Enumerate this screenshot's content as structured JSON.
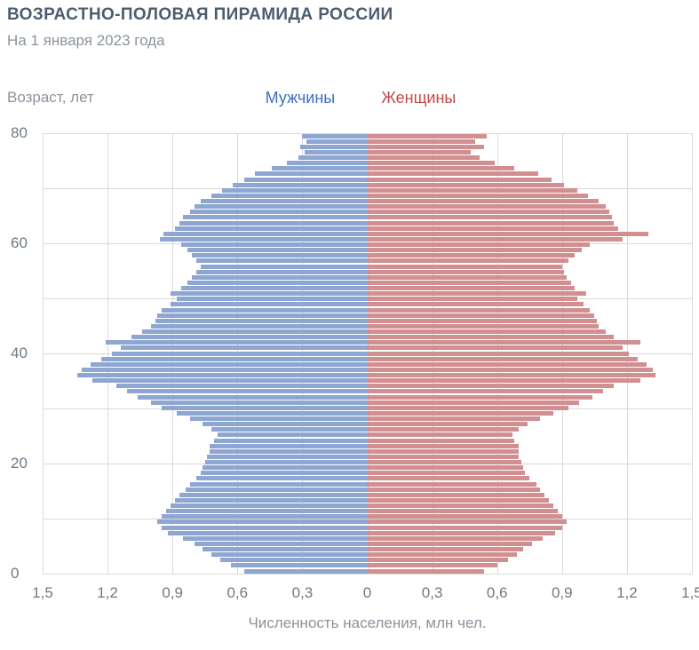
{
  "header": {
    "title": "ВОЗРАСТНО-ПОЛОВАЯ ПИРАМИДА РОССИИ",
    "subtitle": "На 1 января 2023 года"
  },
  "chart_data": {
    "type": "bar",
    "variant": "population-pyramid",
    "title": "Возрастно-половая пирамида России",
    "subtitle": "На 1 января 2023 года",
    "y_axis_title": "Возраст, лет",
    "xlabel": "Численность населения, млн чел.",
    "legend": {
      "male": "Мужчины",
      "female": "Женщины"
    },
    "grid": true,
    "x_max": 1.5,
    "x_ticks": [
      "1,5",
      "1,2",
      "0,9",
      "0,6",
      "0,3",
      "0",
      "0,3",
      "0,6",
      "0,9",
      "1,2",
      "1,5"
    ],
    "x_tick_values": [
      -1.5,
      -1.2,
      -0.9,
      -0.6,
      -0.3,
      0,
      0.3,
      0.6,
      0.9,
      1.2,
      1.5
    ],
    "y_ticks": [
      0,
      20,
      40,
      60,
      80
    ],
    "age_min": 0,
    "age_max": 80,
    "age_step": 1,
    "y_grid_step": 10,
    "colors": {
      "male_bar": "#8ea6d2",
      "female_bar": "#d18f92",
      "male_label": "#3d6fbe",
      "female_label": "#c14b47",
      "grid": "#d9d9d9",
      "title": "#4d5d6e",
      "muted": "#8b939c",
      "tick": "#6e7a85"
    },
    "series": [
      {
        "name": "Мужчины",
        "side": "left",
        "color_key": "male_bar",
        "values_by_age_0_to_80": [
          0.57,
          0.63,
          0.68,
          0.72,
          0.76,
          0.8,
          0.85,
          0.92,
          0.95,
          0.97,
          0.95,
          0.93,
          0.91,
          0.89,
          0.87,
          0.84,
          0.82,
          0.79,
          0.77,
          0.76,
          0.75,
          0.74,
          0.73,
          0.73,
          0.71,
          0.69,
          0.72,
          0.76,
          0.82,
          0.88,
          0.95,
          1.0,
          1.06,
          1.11,
          1.16,
          1.27,
          1.34,
          1.32,
          1.28,
          1.23,
          1.18,
          1.14,
          1.21,
          1.09,
          1.04,
          1.0,
          0.98,
          0.97,
          0.95,
          0.91,
          0.88,
          0.91,
          0.86,
          0.83,
          0.81,
          0.79,
          0.77,
          0.79,
          0.81,
          0.83,
          0.86,
          0.96,
          0.94,
          0.89,
          0.87,
          0.85,
          0.82,
          0.8,
          0.77,
          0.72,
          0.67,
          0.62,
          0.57,
          0.52,
          0.44,
          0.37,
          0.32,
          0.29,
          0.31,
          0.28,
          0.3
        ]
      },
      {
        "name": "Женщины",
        "side": "right",
        "color_key": "female_bar",
        "values_by_age_0_to_80": [
          0.54,
          0.6,
          0.65,
          0.69,
          0.72,
          0.76,
          0.81,
          0.87,
          0.9,
          0.92,
          0.9,
          0.88,
          0.86,
          0.84,
          0.82,
          0.8,
          0.78,
          0.75,
          0.73,
          0.72,
          0.71,
          0.7,
          0.7,
          0.7,
          0.68,
          0.67,
          0.7,
          0.74,
          0.8,
          0.86,
          0.93,
          0.98,
          1.04,
          1.09,
          1.14,
          1.26,
          1.33,
          1.32,
          1.29,
          1.25,
          1.21,
          1.18,
          1.26,
          1.14,
          1.1,
          1.07,
          1.06,
          1.05,
          1.03,
          1.0,
          0.97,
          1.01,
          0.96,
          0.94,
          0.92,
          0.91,
          0.9,
          0.93,
          0.96,
          0.99,
          1.03,
          1.18,
          1.3,
          1.16,
          1.14,
          1.13,
          1.12,
          1.1,
          1.07,
          1.02,
          0.97,
          0.91,
          0.85,
          0.79,
          0.68,
          0.59,
          0.52,
          0.48,
          0.54,
          0.5,
          0.55
        ]
      }
    ]
  }
}
